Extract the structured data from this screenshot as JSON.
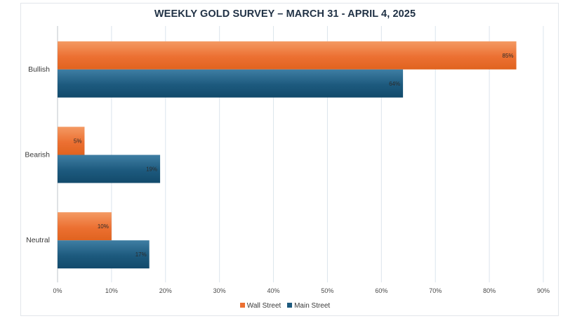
{
  "chart_data": {
    "type": "bar",
    "orientation": "horizontal",
    "title": "WEEKLY GOLD SURVEY – MARCH 31 - APRIL 4, 2025",
    "categories": [
      "Bullish",
      "Bearish",
      "Neutral"
    ],
    "series": [
      {
        "name": "Wall Street",
        "values": [
          85,
          5,
          10
        ],
        "labels": [
          "85%",
          "5%",
          "10%"
        ],
        "color": "#ec7032"
      },
      {
        "name": "Main Street",
        "values": [
          64,
          19,
          17
        ],
        "labels": [
          "64%",
          "19%",
          "17%"
        ],
        "color": "#1d5a7e"
      }
    ],
    "xlim": [
      0,
      90
    ],
    "xticks": [
      0,
      10,
      20,
      30,
      40,
      50,
      60,
      70,
      80,
      90
    ],
    "xtick_labels": [
      "0%",
      "10%",
      "20%",
      "30%",
      "40%",
      "50%",
      "60%",
      "70%",
      "80%",
      "90%"
    ],
    "grid": true,
    "legend_position": "bottom",
    "xlabel": "",
    "ylabel": ""
  }
}
